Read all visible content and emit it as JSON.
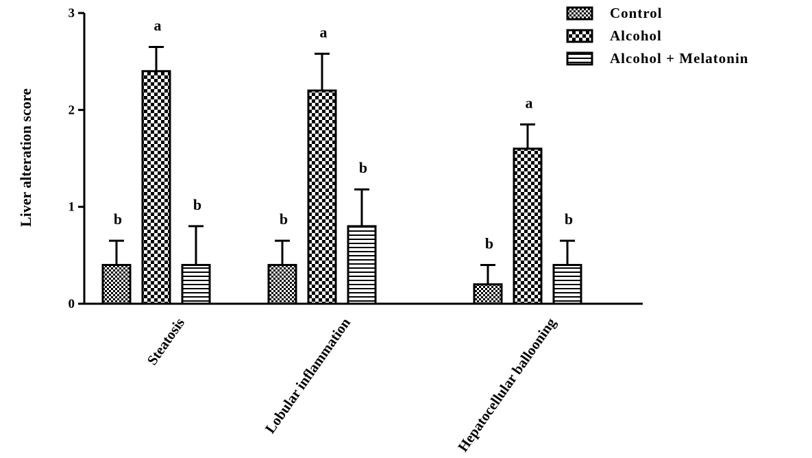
{
  "chart_data": {
    "type": "bar",
    "title": "",
    "xlabel": "",
    "ylabel": "Liver alteration score",
    "ylim": [
      0,
      3
    ],
    "yticks": [
      "0",
      "1",
      "2",
      "3"
    ],
    "categories": [
      "Steatosis",
      "Lobular inflammation",
      "Hepatocellular ballooning"
    ],
    "series": [
      {
        "name": "Control",
        "pattern": "fine-checker",
        "values": [
          0.4,
          0.4,
          0.2
        ],
        "errors": [
          0.25,
          0.25,
          0.2
        ],
        "significance": [
          "b",
          "b",
          "b"
        ]
      },
      {
        "name": "Alcohol",
        "pattern": "large-checker",
        "values": [
          2.4,
          2.2,
          1.6
        ],
        "errors": [
          0.25,
          0.38,
          0.25
        ],
        "significance": [
          "a",
          "a",
          "a"
        ]
      },
      {
        "name": "Alcohol + Melatonin",
        "pattern": "horizontal-stripes",
        "values": [
          0.4,
          0.8,
          0.4
        ],
        "errors": [
          0.4,
          0.38,
          0.25
        ],
        "significance": [
          "b",
          "b",
          "b"
        ]
      }
    ],
    "legend_position": "top-right",
    "grid": false,
    "colors": {
      "ink": "#000000",
      "fill": "#ffffff"
    }
  }
}
